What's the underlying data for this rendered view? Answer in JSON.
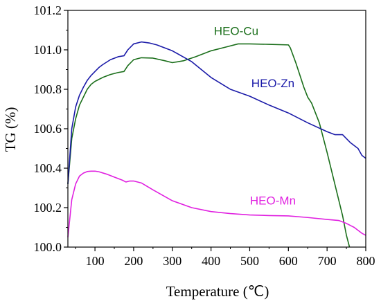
{
  "chart_data": {
    "type": "line",
    "xlabel": "Temperature (℃)",
    "ylabel": "TG (%)",
    "xlim": [
      30,
      800
    ],
    "ylim": [
      100.0,
      101.2
    ],
    "x_ticks": [
      100,
      200,
      300,
      400,
      500,
      600,
      700,
      800
    ],
    "y_ticks": [
      100.0,
      100.2,
      100.4,
      100.6,
      100.8,
      101.0,
      101.2
    ],
    "y_tick_labels": [
      "100.0",
      "100.2",
      "100.4",
      "100.6",
      "100.8",
      "101.0",
      "101.2"
    ],
    "grid": false,
    "legend": "inline labels",
    "series": [
      {
        "name": "HEO-Cu",
        "color": "#1a6e1a",
        "x": [
          30,
          40,
          50,
          60,
          70,
          80,
          90,
          100,
          110,
          120,
          140,
          160,
          175,
          185,
          200,
          220,
          250,
          280,
          300,
          330,
          360,
          400,
          440,
          470,
          500,
          550,
          600,
          605,
          620,
          640,
          650,
          660,
          680,
          700,
          720,
          740,
          750,
          758
        ],
        "y": [
          100.32,
          100.55,
          100.65,
          100.72,
          100.76,
          100.8,
          100.825,
          100.84,
          100.85,
          100.86,
          100.875,
          100.885,
          100.89,
          100.92,
          100.95,
          100.96,
          100.958,
          100.945,
          100.935,
          100.945,
          100.965,
          100.995,
          101.015,
          101.03,
          101.03,
          101.028,
          101.025,
          101.01,
          100.93,
          100.81,
          100.76,
          100.73,
          100.63,
          100.48,
          100.32,
          100.16,
          100.06,
          100.0
        ]
      },
      {
        "name": "HEO-Zn",
        "color": "#1a1aa8",
        "x": [
          30,
          40,
          50,
          60,
          70,
          80,
          90,
          100,
          110,
          120,
          140,
          160,
          175,
          185,
          200,
          220,
          240,
          260,
          300,
          350,
          400,
          450,
          500,
          550,
          600,
          650,
          700,
          720,
          740,
          760,
          780,
          790,
          800
        ],
        "y": [
          100.32,
          100.6,
          100.71,
          100.77,
          100.81,
          100.845,
          100.87,
          100.89,
          100.91,
          100.925,
          100.95,
          100.965,
          100.97,
          101.0,
          101.03,
          101.04,
          101.035,
          101.025,
          100.995,
          100.94,
          100.86,
          100.8,
          100.765,
          100.72,
          100.68,
          100.63,
          100.585,
          100.57,
          100.57,
          100.53,
          100.5,
          100.465,
          100.45
        ]
      },
      {
        "name": "HEO-Mn",
        "color": "#e020e0",
        "x": [
          30,
          40,
          50,
          60,
          70,
          80,
          90,
          100,
          110,
          130,
          150,
          170,
          180,
          190,
          200,
          220,
          250,
          300,
          350,
          400,
          450,
          500,
          550,
          600,
          650,
          700,
          730,
          750,
          770,
          790,
          800
        ],
        "y": [
          100.05,
          100.24,
          100.32,
          100.36,
          100.375,
          100.383,
          100.385,
          100.385,
          100.382,
          100.37,
          100.355,
          100.34,
          100.33,
          100.335,
          100.335,
          100.325,
          100.29,
          100.235,
          100.2,
          100.18,
          100.17,
          100.163,
          100.16,
          100.158,
          100.15,
          100.14,
          100.135,
          100.12,
          100.1,
          100.07,
          100.06
        ]
      }
    ],
    "labels": [
      {
        "series": "HEO-Cu",
        "text": "HEO-Cu",
        "x": 465,
        "y": 101.075
      },
      {
        "series": "HEO-Zn",
        "text": "HEO-Zn",
        "x": 560,
        "y": 100.81
      },
      {
        "series": "HEO-Mn",
        "text": "HEO-Mn",
        "x": 560,
        "y": 100.215
      }
    ]
  }
}
